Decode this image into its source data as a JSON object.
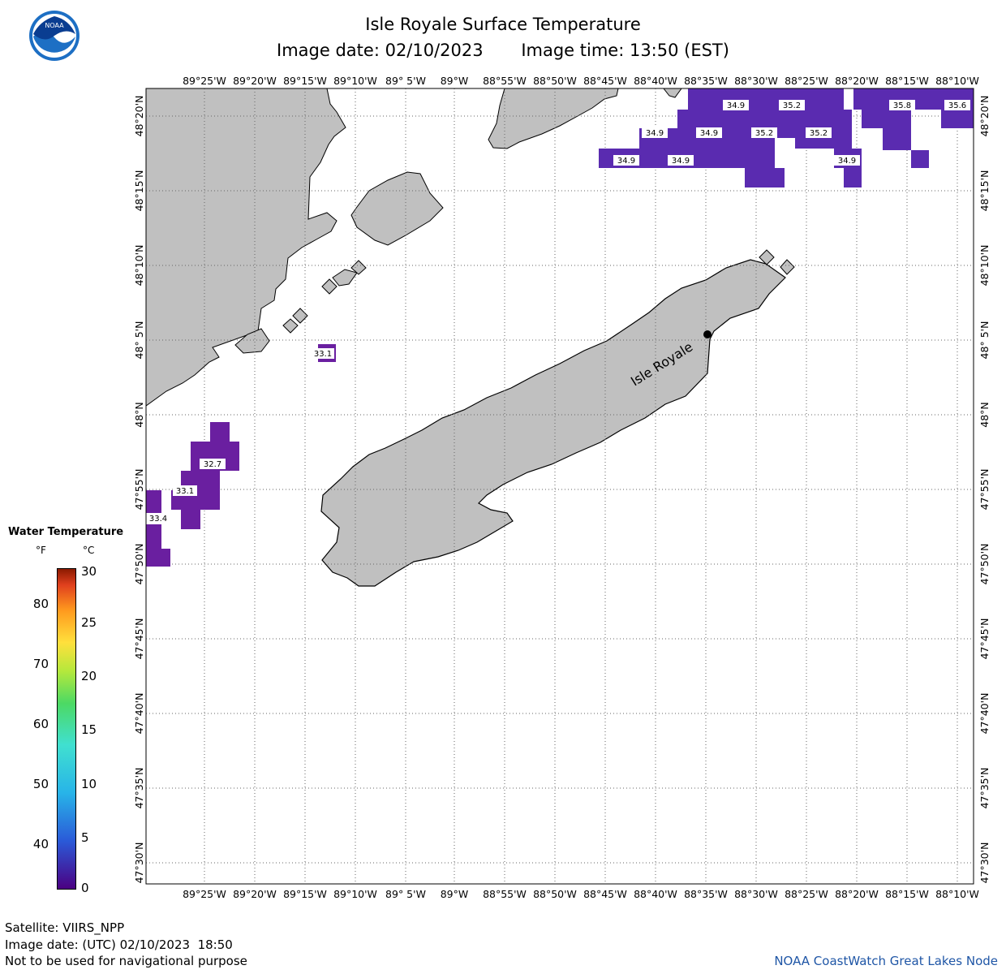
{
  "title": "Isle Royale Surface Temperature",
  "image_date": "Image date: 02/10/2023",
  "image_time": "Image time: 13:50 (EST)",
  "logo_text": "NOAA",
  "lon_labels": [
    "89°25'W",
    "89°20'W",
    "89°15'W",
    "89°10'W",
    "89° 5'W",
    "89°W",
    "88°55'W",
    "88°50'W",
    "88°45'W",
    "88°40'W",
    "88°35'W",
    "88°30'W",
    "88°25'W",
    "88°20'W",
    "88°15'W",
    "88°10'W"
  ],
  "lat_labels": [
    "48°20'N",
    "48°15'N",
    "48°10'N",
    "48° 5'N",
    "48°N",
    "47°55'N",
    "47°50'N",
    "47°45'N",
    "47°40'N",
    "47°35'N",
    "47°30'N"
  ],
  "place_label": "Isle Royale",
  "temperature_labels": {
    "t_34_9_a": "34.9",
    "t_35_2_a": "35.2",
    "t_35_8": "35.8",
    "t_35_6": "35.6",
    "t_34_9_b": "34.9",
    "t_34_9_c": "34.9",
    "t_35_2_b": "35.2",
    "t_35_2_c": "35.2",
    "t_34_9_d": "34.9",
    "t_34_9_e": "34.9",
    "t_34_9_f": "34.9",
    "t_33_1_a": "33.1",
    "t_32_7": "32.7",
    "t_33_1_b": "33.1",
    "t_33_4": "33.4"
  },
  "legend": {
    "title": "Water Temperature",
    "unit_f": "°F",
    "unit_c": "°C",
    "f_ticks": [
      "80",
      "70",
      "60",
      "50",
      "40"
    ],
    "c_ticks": [
      "30",
      "25",
      "20",
      "15",
      "10",
      "5",
      "0"
    ]
  },
  "footer": {
    "satellite": "Satellite: VIIRS_NPP",
    "utc_date": "Image date: (UTC) 02/10/2023  18:50",
    "disclaimer": "Not to be used for navigational purpose",
    "node": "NOAA CoastWatch Great Lakes Node"
  },
  "colors": {
    "land": "#c0c0c0",
    "water_cold": "#6a1fa0",
    "water_cool": "#5a2bb0",
    "footer_link": "#1f56a6"
  }
}
